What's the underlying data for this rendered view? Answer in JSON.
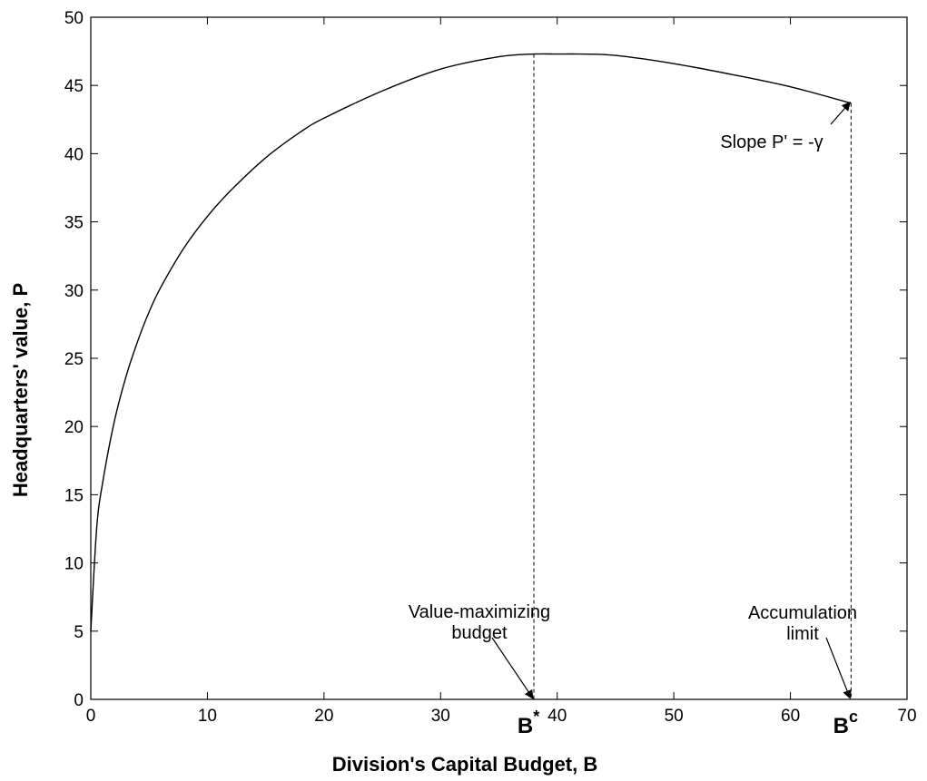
{
  "chart_data": {
    "type": "line",
    "title": "",
    "xlabel": "Division's Capital Budget, B",
    "ylabel": "Headquarters' value, P",
    "xlim": [
      0,
      70
    ],
    "ylim": [
      0,
      50
    ],
    "x_ticks": [
      0,
      10,
      20,
      30,
      40,
      50,
      60,
      70
    ],
    "y_ticks": [
      0,
      5,
      10,
      15,
      20,
      25,
      30,
      35,
      40,
      45,
      50
    ],
    "grid": false,
    "series": [
      {
        "color": "#000000",
        "x": [
          0,
          0.5,
          1,
          2,
          3,
          4,
          5,
          6,
          8,
          10,
          12,
          15,
          18,
          20,
          25,
          30,
          35,
          38,
          40,
          42,
          45,
          50,
          55,
          60,
          65.2
        ],
        "y": [
          5,
          12.5,
          15.8,
          20.3,
          23.6,
          26.2,
          28.4,
          30.2,
          33.1,
          35.4,
          37.3,
          39.7,
          41.6,
          42.6,
          44.6,
          46.2,
          47.1,
          47.3,
          47.3,
          47.3,
          47.2,
          46.6,
          45.8,
          44.9,
          43.7
        ]
      }
    ],
    "vlines": [
      {
        "x": 38,
        "y_top": 47.3,
        "label": "B*",
        "label_base": "B",
        "label_sup": "*"
      },
      {
        "x": 65.2,
        "y_top": 43.7,
        "label": "Bc",
        "label_base": "B",
        "label_sup": "c"
      }
    ],
    "annotations": [
      {
        "id": "value-max",
        "lines": [
          "Value-maximizing",
          "budget"
        ],
        "arrow_to": [
          38,
          0
        ]
      },
      {
        "id": "accum",
        "lines": [
          "Accumulation",
          "limit"
        ],
        "arrow_to": [
          65.2,
          0
        ]
      },
      {
        "id": "slope",
        "lines": [
          "Slope P' = -γ"
        ],
        "arrow_to": [
          65.2,
          43.7
        ]
      }
    ]
  }
}
